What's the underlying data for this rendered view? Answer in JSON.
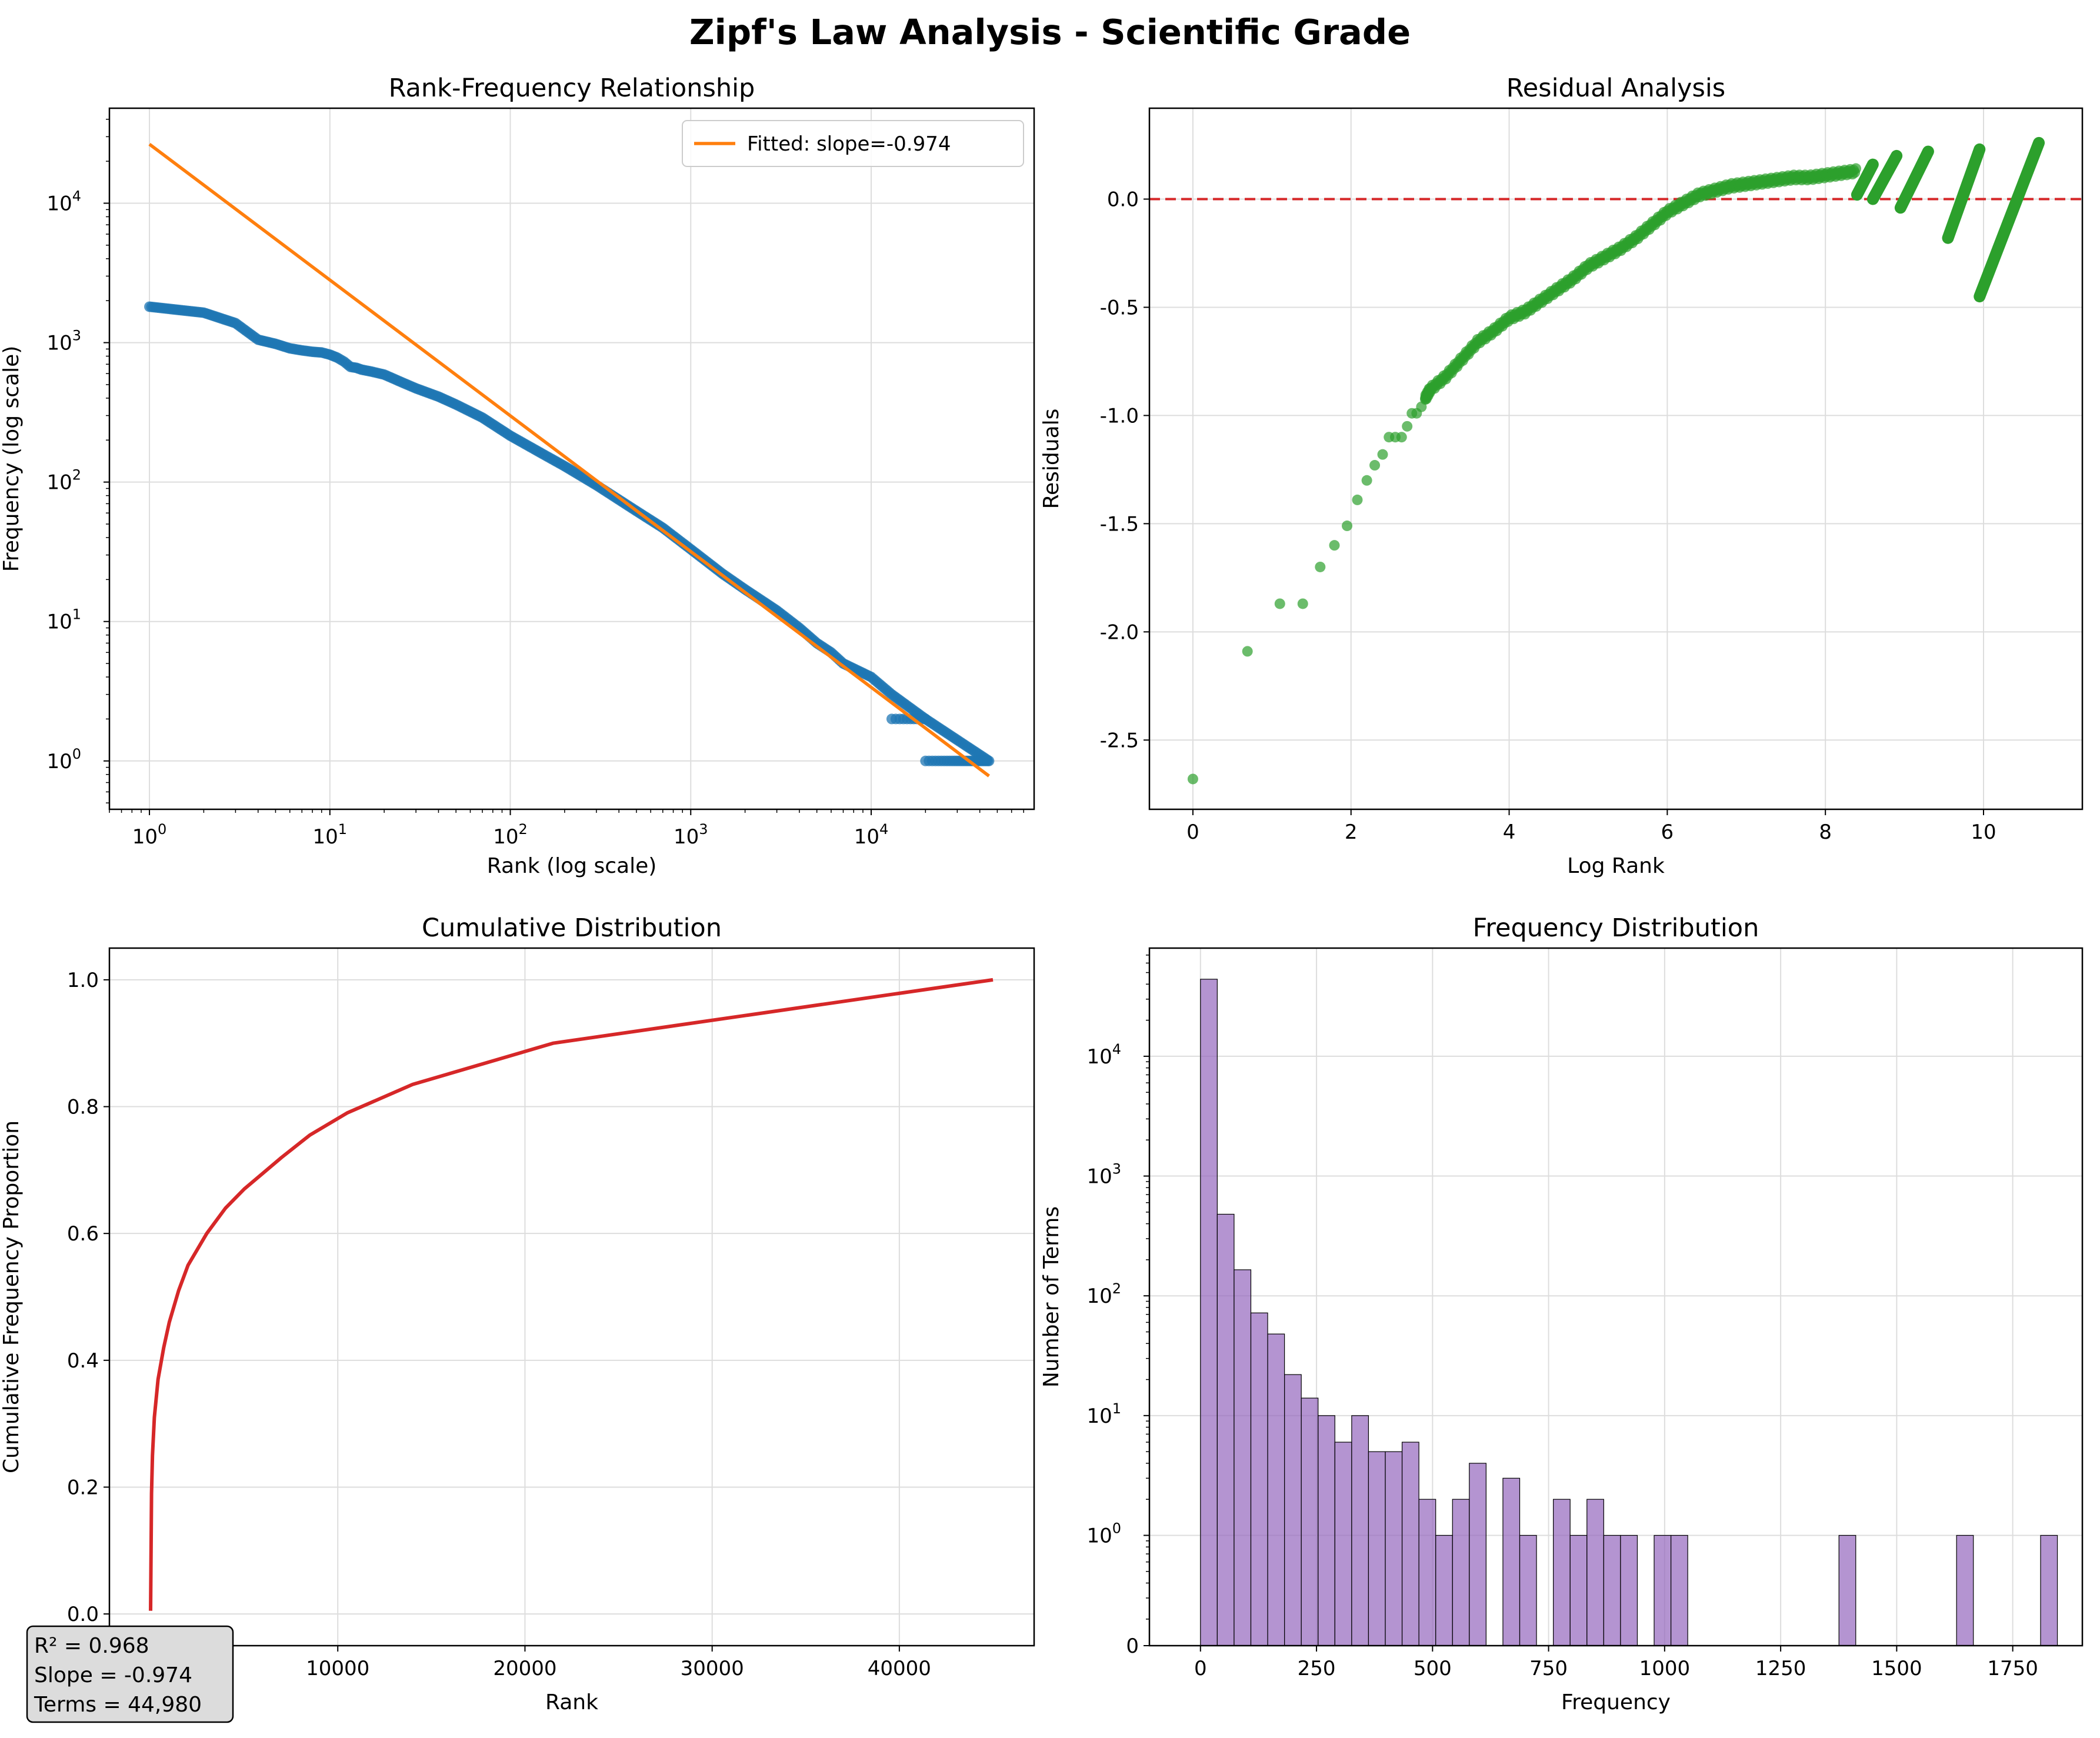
{
  "title": "Zipf's Law Analysis - Scientific Grade",
  "colors": {
    "scatter": "#1f77b4",
    "fit": "#ff7f0e",
    "residual": "#2ca02c",
    "zero_line": "#d62728",
    "cumulative": "#d62728",
    "histogram": "#9467bd",
    "grid": "#dddddd"
  },
  "stats_box": {
    "lines": [
      "R² = 0.968",
      "Slope = -0.974",
      "Terms = 44,980"
    ]
  },
  "chart_data": [
    {
      "type": "scatter",
      "title": "Rank-Frequency Relationship",
      "xlabel": "Rank (log scale)",
      "ylabel": "Frequency (log scale)",
      "xscale": "log",
      "yscale": "log",
      "xlim": [
        0.6,
        80000
      ],
      "ylim": [
        0.45,
        48000
      ],
      "xticks": [
        1,
        10,
        100,
        1000,
        10000
      ],
      "yticks": [
        1,
        10,
        100,
        1000,
        10000
      ],
      "grid": true,
      "legend": {
        "placement": "top-right",
        "entries": [
          "Fitted: slope=-0.974"
        ]
      },
      "points": [
        [
          1,
          1810
        ],
        [
          2,
          1640
        ],
        [
          3,
          1380
        ],
        [
          4,
          1050
        ],
        [
          5,
          980
        ],
        [
          6,
          910
        ],
        [
          7,
          880
        ],
        [
          8,
          860
        ],
        [
          9,
          850
        ],
        [
          10,
          820
        ],
        [
          11,
          780
        ],
        [
          12,
          730
        ],
        [
          13,
          670
        ],
        [
          14,
          660
        ],
        [
          15,
          640
        ],
        [
          17,
          620
        ],
        [
          20,
          590
        ],
        [
          25,
          520
        ],
        [
          30,
          470
        ],
        [
          40,
          410
        ],
        [
          50,
          360
        ],
        [
          70,
          290
        ],
        [
          100,
          215
        ],
        [
          150,
          160
        ],
        [
          200,
          130
        ],
        [
          300,
          95
        ],
        [
          500,
          62
        ],
        [
          700,
          47
        ],
        [
          1000,
          33
        ],
        [
          1500,
          22
        ],
        [
          2000,
          17
        ],
        [
          3000,
          12
        ],
        [
          4000,
          9
        ],
        [
          5000,
          7
        ],
        [
          6000,
          6
        ],
        [
          7000,
          5
        ],
        [
          10000,
          4
        ],
        [
          13000,
          3
        ],
        [
          20000,
          2
        ],
        [
          45000,
          1
        ]
      ],
      "fit": {
        "name": "Fitted: slope=-0.974",
        "slope": -0.974,
        "x": [
          1,
          45000
        ],
        "y": [
          26500,
          0.78
        ]
      }
    },
    {
      "type": "scatter",
      "title": "Residual Analysis",
      "xlabel": "Log Rank",
      "ylabel": "Residuals",
      "xlim": [
        -0.55,
        11.25
      ],
      "ylim": [
        -2.82,
        0.42
      ],
      "xticks": [
        0,
        2,
        4,
        6,
        8,
        10
      ],
      "yticks": [
        -2.5,
        -2.0,
        -1.5,
        -1.0,
        -0.5,
        0.0
      ],
      "ytick_labels": [
        "-2.5",
        "-2.0",
        "-1.5",
        "-1.0",
        "-0.5",
        "0.0"
      ],
      "grid": true,
      "reference_line_y": 0.0,
      "points": [
        [
          0,
          -2.68
        ],
        [
          0.69,
          -2.09
        ],
        [
          1.1,
          -1.87
        ],
        [
          1.39,
          -1.87
        ],
        [
          1.61,
          -1.7
        ],
        [
          1.79,
          -1.6
        ],
        [
          1.95,
          -1.51
        ],
        [
          2.08,
          -1.39
        ],
        [
          2.2,
          -1.3
        ],
        [
          2.3,
          -1.23
        ],
        [
          2.4,
          -1.18
        ],
        [
          2.48,
          -1.1
        ],
        [
          2.56,
          -1.1
        ],
        [
          2.64,
          -1.1
        ],
        [
          2.71,
          -1.05
        ],
        [
          2.77,
          -0.99
        ],
        [
          2.83,
          -0.99
        ],
        [
          2.89,
          -0.96
        ],
        [
          2.94,
          -0.92
        ],
        [
          3.0,
          -0.88
        ],
        [
          3.2,
          -0.82
        ],
        [
          3.4,
          -0.74
        ],
        [
          3.6,
          -0.66
        ],
        [
          3.8,
          -0.61
        ],
        [
          4.0,
          -0.55
        ],
        [
          4.2,
          -0.52
        ],
        [
          4.4,
          -0.47
        ],
        [
          4.6,
          -0.42
        ],
        [
          4.8,
          -0.37
        ],
        [
          5.0,
          -0.31
        ],
        [
          5.2,
          -0.27
        ],
        [
          5.4,
          -0.23
        ],
        [
          5.6,
          -0.18
        ],
        [
          5.8,
          -0.12
        ],
        [
          6.0,
          -0.06
        ],
        [
          6.2,
          -0.02
        ],
        [
          6.4,
          0.02
        ],
        [
          6.6,
          0.04
        ],
        [
          6.8,
          0.06
        ],
        [
          7.0,
          0.07
        ],
        [
          7.2,
          0.08
        ],
        [
          7.4,
          0.09
        ],
        [
          7.6,
          0.1
        ],
        [
          7.8,
          0.1
        ],
        [
          8.0,
          0.11
        ],
        [
          8.2,
          0.12
        ],
        [
          8.4,
          0.13
        ]
      ],
      "bands": [
        {
          "x": [
            8.4,
            8.6
          ],
          "y": [
            0.02,
            0.16
          ]
        },
        {
          "x": [
            8.6,
            8.9
          ],
          "y": [
            0.0,
            0.2
          ]
        },
        {
          "x": [
            8.95,
            9.3
          ],
          "y": [
            -0.04,
            0.22
          ]
        },
        {
          "x": [
            9.55,
            9.95
          ],
          "y": [
            -0.18,
            0.23
          ]
        },
        {
          "x": [
            9.95,
            10.7
          ],
          "y": [
            -0.45,
            0.26
          ]
        }
      ]
    },
    {
      "type": "line",
      "title": "Cumulative Distribution",
      "xlabel": "Rank",
      "ylabel": "Cumulative Frequency Proportion",
      "xlim": [
        -2200,
        47200
      ],
      "ylim": [
        -0.05,
        1.05
      ],
      "xticks": [
        10000,
        20000,
        30000,
        40000
      ],
      "yticks": [
        0.0,
        0.2,
        0.4,
        0.6,
        0.8,
        1.0
      ],
      "ytick_labels": [
        "0.0",
        "0.2",
        "0.4",
        "0.6",
        "0.8",
        "1.0"
      ],
      "grid": true,
      "x": [
        1,
        50,
        100,
        200,
        400,
        700,
        1000,
        1500,
        2000,
        3000,
        4000,
        5000,
        6000,
        7000,
        8500,
        10500,
        14000,
        21500,
        45000
      ],
      "y": [
        0.005,
        0.19,
        0.25,
        0.31,
        0.37,
        0.42,
        0.46,
        0.51,
        0.55,
        0.6,
        0.64,
        0.67,
        0.695,
        0.72,
        0.755,
        0.79,
        0.835,
        0.9,
        1.0
      ]
    },
    {
      "type": "bar",
      "title": "Frequency Distribution",
      "xlabel": "Frequency",
      "ylabel": "Number of Terms",
      "yscale": "log",
      "xlim": [
        -110,
        1900
      ],
      "ylim": [
        0.12,
        80000
      ],
      "xticks": [
        0,
        250,
        500,
        750,
        1000,
        1250,
        1500,
        1750
      ],
      "yticks": [
        1,
        10,
        100,
        1000,
        10000
      ],
      "zero_label": "0",
      "grid": true,
      "bin_width": 36.2,
      "bin_start": 0,
      "counts": [
        44000,
        480,
        165,
        72,
        48,
        22,
        14,
        10,
        6,
        10,
        5,
        5,
        6,
        2,
        1,
        2,
        4,
        0,
        3,
        1,
        0,
        2,
        1,
        2,
        1,
        1,
        0,
        1,
        1,
        0,
        0,
        0,
        0,
        0,
        0,
        0,
        0,
        0,
        1,
        0,
        0,
        0,
        0,
        0,
        0,
        1,
        0,
        0,
        0,
        0,
        1
      ]
    }
  ]
}
